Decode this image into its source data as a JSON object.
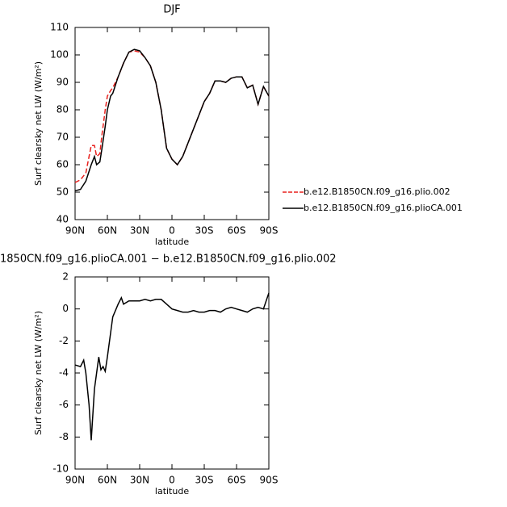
{
  "chart_data": [
    {
      "type": "line",
      "title": "DJF",
      "x_label": "latitude",
      "y_label": "Surf clearsky net LW (W/m²)",
      "x": [
        90,
        85,
        80,
        75,
        72,
        70,
        67,
        65,
        62,
        60,
        57,
        55,
        50,
        45,
        40,
        35,
        30,
        25,
        20,
        15,
        10,
        5,
        0,
        -5,
        -10,
        -15,
        -20,
        -25,
        -30,
        -35,
        -40,
        -45,
        -50,
        -55,
        -60,
        -65,
        -70,
        -75,
        -80,
        -85,
        -90
      ],
      "series": [
        {
          "name": "b.e12.B1850CN.f09_g16.plio.002",
          "color": "#e8211d",
          "line_style": "dashed",
          "values": [
            53.5,
            54.5,
            57,
            67,
            67,
            63,
            64,
            71,
            80,
            85,
            87,
            88,
            92,
            97,
            101,
            101.5,
            101,
            99,
            96,
            90,
            80,
            66,
            62,
            60,
            63,
            68,
            73,
            78,
            83,
            86,
            90.5,
            90.5,
            90,
            91.5,
            92,
            92,
            88,
            89,
            82,
            88.5,
            85
          ]
        },
        {
          "name": "b.e12.B1850CN.f09_g16.plioCA.001",
          "color": "#000000",
          "line_style": "solid",
          "values": [
            50.5,
            51,
            54,
            60,
            63,
            60,
            61,
            66,
            74,
            80,
            85,
            86,
            92,
            97,
            101,
            102,
            101.5,
            99,
            96,
            90,
            80,
            66,
            62,
            60,
            63,
            68,
            73,
            78,
            83,
            86,
            90.5,
            90.5,
            90,
            91.5,
            92,
            92,
            88,
            89,
            82,
            88.5,
            85
          ]
        }
      ],
      "xlim": [
        90,
        -90
      ],
      "xticks": [
        {
          "value": 90,
          "label": "90N"
        },
        {
          "value": 60,
          "label": "60N"
        },
        {
          "value": 30,
          "label": "30N"
        },
        0,
        {
          "value": -30,
          "label": "30S"
        },
        {
          "value": -60,
          "label": "60S"
        },
        {
          "value": -90,
          "label": "90S"
        }
      ],
      "ylim": [
        40,
        110
      ],
      "yticks": [
        40,
        50,
        60,
        70,
        80,
        90,
        100,
        110
      ],
      "legend": "right"
    },
    {
      "type": "line",
      "title": "1850CN.f09_g16.plioCA.001 − b.e12.B1850CN.f09_g16.plio.002",
      "x_label": "latitude",
      "y_label": "Surf clearsky net LW (W/m²)",
      "x": [
        90,
        85,
        82,
        80,
        77,
        75,
        72,
        70,
        68,
        66,
        64,
        62,
        60,
        57,
        55,
        50,
        47,
        45,
        40,
        35,
        30,
        25,
        20,
        15,
        10,
        5,
        0,
        -5,
        -10,
        -15,
        -20,
        -25,
        -30,
        -35,
        -40,
        -45,
        -50,
        -55,
        -60,
        -65,
        -70,
        -75,
        -80,
        -85,
        -90
      ],
      "series": [
        {
          "name": null,
          "color": "#000000",
          "line_style": "solid",
          "values": [
            -3.5,
            -3.6,
            -3.2,
            -4,
            -6,
            -8.2,
            -5,
            -4,
            -3,
            -3.8,
            -3.6,
            -3.9,
            -3,
            -1.5,
            -0.5,
            0.3,
            0.7,
            0.3,
            0.5,
            0.5,
            0.5,
            0.6,
            0.5,
            0.6,
            0.6,
            0.3,
            0,
            -0.1,
            -0.2,
            -0.2,
            -0.1,
            -0.2,
            -0.2,
            -0.1,
            -0.1,
            -0.2,
            0,
            0.1,
            0,
            -0.1,
            -0.2,
            0,
            0.1,
            0,
            1
          ]
        }
      ],
      "xlim": [
        90,
        -90
      ],
      "xticks": [
        {
          "value": 90,
          "label": "90N"
        },
        {
          "value": 60,
          "label": "60N"
        },
        {
          "value": 30,
          "label": "30N"
        },
        0,
        {
          "value": -30,
          "label": "30S"
        },
        {
          "value": -60,
          "label": "60S"
        },
        {
          "value": -90,
          "label": "90S"
        }
      ],
      "ylim": [
        -10,
        2
      ],
      "yticks": [
        -10,
        -8,
        -6,
        -4,
        -2,
        0,
        2
      ]
    }
  ]
}
